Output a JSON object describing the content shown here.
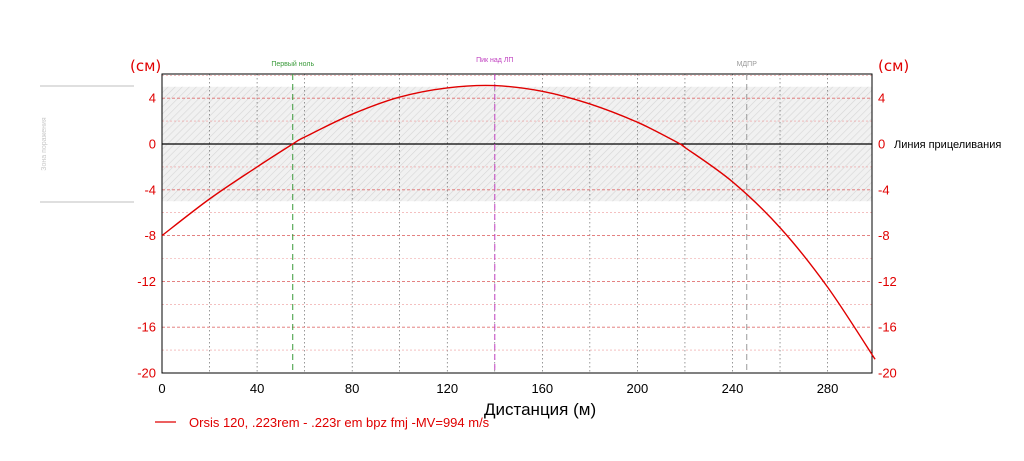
{
  "chart_data": {
    "type": "line",
    "xlabel": "Дистанция (м)",
    "ylabel_left": "(см)",
    "ylabel_right": "(см)",
    "xlim": [
      0,
      300
    ],
    "ylim": [
      -20,
      6
    ],
    "x_ticks": [
      "0",
      "40",
      "80",
      "120",
      "160",
      "200",
      "240",
      "280"
    ],
    "y_ticks": [
      "4",
      "0",
      "-4",
      "-8",
      "-12",
      "-16",
      "-20"
    ],
    "kill_zone": {
      "label": "Зона поражения",
      "range": [
        -5,
        5
      ]
    },
    "sight_line": {
      "label": "Линия прицеливания",
      "value": 0
    },
    "markers": [
      {
        "label": "Первый ноль",
        "x": 55,
        "color": "#3a9a3a"
      },
      {
        "label": "Пик над ЛП",
        "x": 140,
        "color": "#c040c0"
      },
      {
        "label": "МДПР",
        "x": 246,
        "color": "#9a9a9a"
      }
    ],
    "series": [
      {
        "name": "Orsis 120, .223rem - .223r em bpz fmj -MV=994 m/s",
        "color": "#e00000",
        "x": [
          0,
          20,
          40,
          55,
          60,
          80,
          100,
          120,
          140,
          160,
          180,
          200,
          218,
          220,
          240,
          260,
          280,
          300
        ],
        "y": [
          -8,
          -4.8,
          -2.0,
          0,
          0.6,
          2.6,
          4.1,
          4.9,
          5.1,
          4.6,
          3.5,
          1.9,
          0,
          -0.3,
          -3.3,
          -7.3,
          -12.5,
          -18.8
        ]
      }
    ],
    "grid": true
  }
}
